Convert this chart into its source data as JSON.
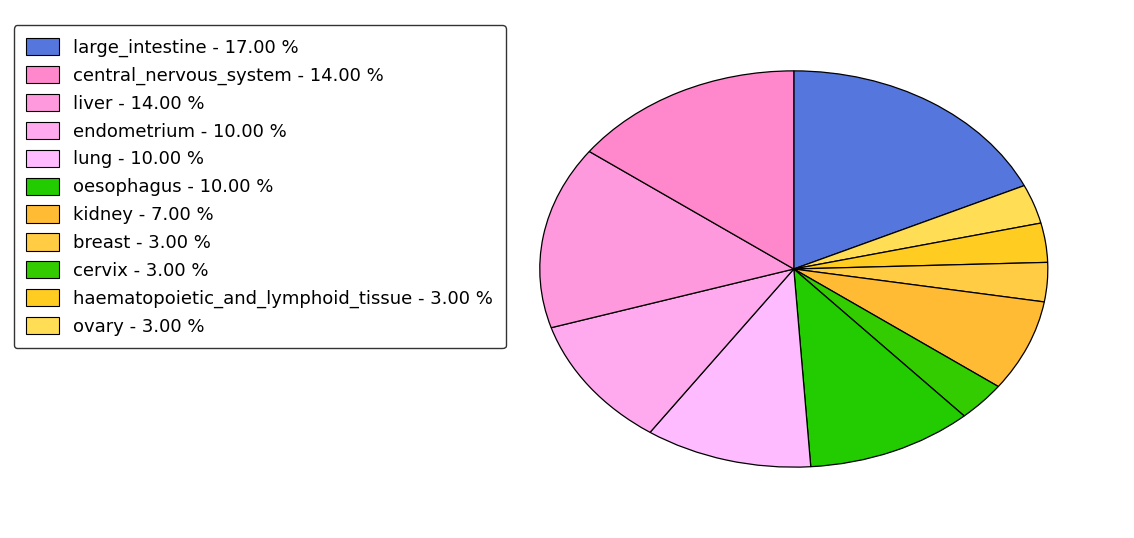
{
  "legend_labels": [
    "large_intestine - 17.00 %",
    "central_nervous_system - 14.00 %",
    "liver - 14.00 %",
    "endometrium - 10.00 %",
    "lung - 10.00 %",
    "oesophagus - 10.00 %",
    "kidney - 7.00 %",
    "breast - 3.00 %",
    "cervix - 3.00 %",
    "haematopoietic_and_lymphoid_tissue - 3.00 %",
    "ovary - 3.00 %"
  ],
  "legend_colors": [
    "#5577dd",
    "#ff88cc",
    "#ff99dd",
    "#ffaaee",
    "#ffbbff",
    "#22cc00",
    "#ffbb33",
    "#ffcc44",
    "#33cc00",
    "#ffcc22",
    "#ffdd55"
  ],
  "pie_order_keys": [
    "large_intestine",
    "ovary",
    "haematopoietic_and_lymphoid_tissue",
    "breast",
    "kidney",
    "cervix",
    "oesophagus",
    "lung",
    "endometrium",
    "liver",
    "central_nervous_system"
  ],
  "pie_values": [
    17,
    3,
    3,
    3,
    7,
    3,
    10,
    10,
    10,
    14,
    14
  ],
  "pie_colors": [
    "#5577dd",
    "#ffdd55",
    "#ffcc22",
    "#ffcc44",
    "#ffbb33",
    "#33cc00",
    "#22cc00",
    "#ffbbff",
    "#ffaaee",
    "#ff99dd",
    "#ff88cc"
  ],
  "startangle": 90,
  "figsize": [
    11.34,
    5.38
  ],
  "dpi": 100,
  "legend_fontsize": 13
}
